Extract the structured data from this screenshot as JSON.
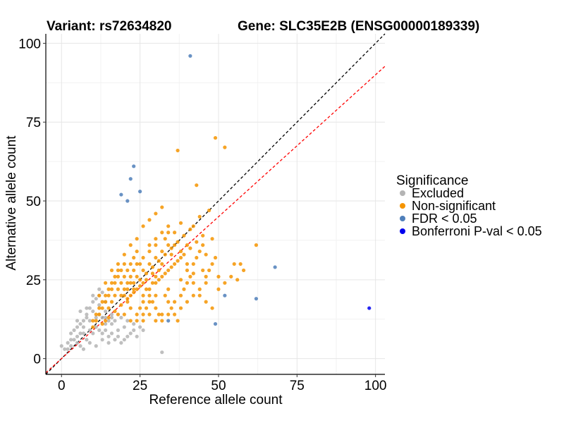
{
  "chart_data": {
    "type": "scatter",
    "title_left": "Variant: rs72634820",
    "title_right": "Gene: SLC35E2B (ENSG00000189339)",
    "xlabel": "Reference allele count",
    "ylabel": "Alternative allele count",
    "xlim": [
      -5,
      103
    ],
    "ylim": [
      -5,
      103
    ],
    "x_ticks": [
      0,
      25,
      50,
      75,
      100
    ],
    "y_ticks": [
      0,
      25,
      50,
      75,
      100
    ],
    "grid": true,
    "legend": {
      "title": "Significance",
      "position": "right",
      "entries": [
        {
          "label": "Excluded",
          "color": "#b4b4b4"
        },
        {
          "label": "Non-significant",
          "color": "#f59400"
        },
        {
          "label": "FDR < 0.05",
          "color": "#4f7fba"
        },
        {
          "label": "Bonferroni P-val < 0.05",
          "color": "#0000ee"
        }
      ]
    },
    "reference_lines": [
      {
        "description": "identity",
        "slope": 1,
        "intercept": 0,
        "color": "#000000",
        "dash": true
      },
      {
        "description": "fitted ratio",
        "slope": 0.9,
        "intercept": 0,
        "color": "#ff0000",
        "dash": true
      }
    ],
    "series": [
      {
        "name": "Excluded",
        "color": "#b4b4b4",
        "points": [
          [
            32,
            2
          ],
          [
            0,
            4
          ],
          [
            2,
            5
          ],
          [
            3,
            6
          ],
          [
            5,
            7
          ],
          [
            4,
            9
          ],
          [
            6,
            11
          ],
          [
            8,
            13
          ],
          [
            10,
            15
          ],
          [
            12,
            17
          ],
          [
            14,
            9
          ],
          [
            16,
            8
          ],
          [
            18,
            7
          ],
          [
            20,
            6
          ],
          [
            22,
            8
          ],
          [
            24,
            7
          ],
          [
            15,
            5
          ],
          [
            13,
            6
          ],
          [
            11,
            4
          ],
          [
            9,
            5
          ],
          [
            7,
            3
          ],
          [
            6,
            4
          ],
          [
            1,
            3
          ],
          [
            5,
            10
          ],
          [
            7,
            12
          ],
          [
            8,
            14
          ],
          [
            9,
            16
          ],
          [
            10,
            18
          ],
          [
            11,
            19
          ],
          [
            12,
            20
          ],
          [
            13,
            21
          ],
          [
            14,
            15
          ],
          [
            16,
            11
          ],
          [
            18,
            9
          ],
          [
            20,
            10
          ],
          [
            17,
            12
          ],
          [
            19,
            13
          ],
          [
            21,
            12
          ],
          [
            23,
            11
          ],
          [
            25,
            10
          ],
          [
            26,
            9
          ],
          [
            3,
            8
          ],
          [
            4,
            6
          ],
          [
            6,
            8
          ],
          [
            8,
            6
          ],
          [
            10,
            8
          ],
          [
            12,
            9
          ],
          [
            14,
            11
          ],
          [
            15,
            12
          ],
          [
            16,
            14
          ],
          [
            2,
            3
          ],
          [
            3,
            4
          ],
          [
            5,
            5
          ],
          [
            7,
            8
          ],
          [
            9,
            9
          ],
          [
            11,
            10
          ],
          [
            13,
            13
          ],
          [
            6,
            15
          ],
          [
            8,
            16
          ],
          [
            10,
            20
          ],
          [
            12,
            22
          ],
          [
            14,
            18
          ],
          [
            5,
            12
          ],
          [
            7,
            10
          ],
          [
            9,
            12
          ],
          [
            11,
            13
          ],
          [
            13,
            8
          ],
          [
            15,
            7
          ],
          [
            17,
            6
          ],
          [
            19,
            5
          ],
          [
            21,
            7
          ],
          [
            23,
            9
          ],
          [
            12,
            14
          ],
          [
            14,
            13
          ],
          [
            16,
            13
          ]
        ]
      },
      {
        "name": "Non-significant",
        "color": "#f59400",
        "points": [
          [
            37,
            66
          ],
          [
            49,
            70
          ],
          [
            52,
            67
          ],
          [
            43,
            55
          ],
          [
            47,
            47
          ],
          [
            44,
            45
          ],
          [
            42,
            42
          ],
          [
            38,
            43
          ],
          [
            36,
            40
          ],
          [
            33,
            38
          ],
          [
            30,
            36
          ],
          [
            28,
            36
          ],
          [
            35,
            33
          ],
          [
            40,
            30
          ],
          [
            45,
            28
          ],
          [
            50,
            26
          ],
          [
            55,
            30
          ],
          [
            57,
            30
          ],
          [
            62,
            36
          ],
          [
            48,
            38
          ],
          [
            46,
            33
          ],
          [
            42,
            27
          ],
          [
            38,
            25
          ],
          [
            34,
            22
          ],
          [
            30,
            20
          ],
          [
            26,
            18
          ],
          [
            22,
            16
          ],
          [
            18,
            14
          ],
          [
            14,
            12
          ],
          [
            10,
            10
          ],
          [
            12,
            20
          ],
          [
            14,
            24
          ],
          [
            16,
            28
          ],
          [
            18,
            30
          ],
          [
            20,
            33
          ],
          [
            22,
            36
          ],
          [
            24,
            38
          ],
          [
            26,
            42
          ],
          [
            28,
            44
          ],
          [
            30,
            46
          ],
          [
            32,
            48
          ],
          [
            34,
            40
          ],
          [
            36,
            36
          ],
          [
            38,
            32
          ],
          [
            40,
            28
          ],
          [
            42,
            24
          ],
          [
            44,
            20
          ],
          [
            46,
            18
          ],
          [
            48,
            16
          ],
          [
            50,
            22
          ],
          [
            52,
            24
          ],
          [
            54,
            26
          ],
          [
            56,
            25
          ],
          [
            58,
            28
          ],
          [
            25,
            25
          ],
          [
            27,
            27
          ],
          [
            29,
            29
          ],
          [
            31,
            31
          ],
          [
            33,
            33
          ],
          [
            35,
            35
          ],
          [
            37,
            37
          ],
          [
            39,
            39
          ],
          [
            41,
            41
          ],
          [
            20,
            20
          ],
          [
            21,
            22
          ],
          [
            23,
            24
          ],
          [
            24,
            26
          ],
          [
            26,
            28
          ],
          [
            28,
            30
          ],
          [
            30,
            32
          ],
          [
            32,
            34
          ],
          [
            34,
            36
          ],
          [
            15,
            16
          ],
          [
            16,
            18
          ],
          [
            17,
            20
          ],
          [
            18,
            22
          ],
          [
            19,
            24
          ],
          [
            20,
            26
          ],
          [
            21,
            28
          ],
          [
            22,
            30
          ],
          [
            23,
            32
          ],
          [
            24,
            34
          ],
          [
            25,
            30
          ],
          [
            26,
            24
          ],
          [
            27,
            22
          ],
          [
            28,
            20
          ],
          [
            29,
            18
          ],
          [
            30,
            16
          ],
          [
            31,
            14
          ],
          [
            32,
            12
          ],
          [
            33,
            20
          ],
          [
            34,
            18
          ],
          [
            35,
            16
          ],
          [
            36,
            14
          ],
          [
            37,
            12
          ],
          [
            38,
            20
          ],
          [
            39,
            22
          ],
          [
            40,
            24
          ],
          [
            41,
            26
          ],
          [
            42,
            30
          ],
          [
            43,
            32
          ],
          [
            44,
            34
          ],
          [
            45,
            36
          ],
          [
            46,
            26
          ],
          [
            47,
            28
          ],
          [
            48,
            30
          ],
          [
            49,
            32
          ],
          [
            11,
            12
          ],
          [
            12,
            14
          ],
          [
            13,
            16
          ],
          [
            14,
            18
          ],
          [
            15,
            20
          ],
          [
            16,
            22
          ],
          [
            17,
            24
          ],
          [
            18,
            26
          ],
          [
            19,
            28
          ],
          [
            20,
            30
          ],
          [
            21,
            18
          ],
          [
            22,
            20
          ],
          [
            23,
            22
          ],
          [
            24,
            14
          ],
          [
            25,
            16
          ],
          [
            26,
            14
          ],
          [
            27,
            16
          ],
          [
            28,
            18
          ],
          [
            29,
            24
          ],
          [
            30,
            26
          ],
          [
            31,
            28
          ],
          [
            32,
            30
          ],
          [
            13,
            11
          ],
          [
            15,
            13
          ],
          [
            17,
            15
          ],
          [
            19,
            17
          ],
          [
            21,
            19
          ],
          [
            23,
            21
          ],
          [
            25,
            23
          ],
          [
            27,
            25
          ],
          [
            29,
            27
          ],
          [
            31,
            25
          ],
          [
            33,
            27
          ],
          [
            35,
            29
          ],
          [
            37,
            31
          ],
          [
            39,
            33
          ],
          [
            41,
            35
          ],
          [
            43,
            37
          ],
          [
            45,
            39
          ],
          [
            10,
            12
          ],
          [
            11,
            14
          ],
          [
            12,
            16
          ],
          [
            13,
            18
          ],
          [
            14,
            20
          ],
          [
            15,
            22
          ],
          [
            16,
            24
          ],
          [
            17,
            26
          ],
          [
            18,
            28
          ],
          [
            22,
            24
          ],
          [
            24,
            22
          ],
          [
            26,
            20
          ],
          [
            28,
            22
          ],
          [
            30,
            24
          ],
          [
            32,
            26
          ],
          [
            34,
            28
          ],
          [
            36,
            30
          ],
          [
            38,
            34
          ],
          [
            40,
            36
          ],
          [
            24,
            30
          ],
          [
            26,
            32
          ],
          [
            28,
            34
          ],
          [
            30,
            38
          ],
          [
            32,
            40
          ],
          [
            34,
            42
          ],
          [
            19,
            20
          ],
          [
            20,
            22
          ],
          [
            21,
            24
          ],
          [
            22,
            26
          ],
          [
            23,
            28
          ],
          [
            20,
            14
          ],
          [
            22,
            12
          ],
          [
            24,
            12
          ],
          [
            26,
            12
          ],
          [
            28,
            14
          ],
          [
            30,
            12
          ],
          [
            32,
            14
          ],
          [
            34,
            14
          ],
          [
            36,
            18
          ],
          [
            38,
            16
          ],
          [
            40,
            18
          ],
          [
            42,
            20
          ],
          [
            44,
            22
          ],
          [
            46,
            24
          ]
        ]
      },
      {
        "name": "FDR < 0.05",
        "color": "#4f7fba",
        "points": [
          [
            41,
            96
          ],
          [
            23,
            61
          ],
          [
            22,
            57
          ],
          [
            25,
            53
          ],
          [
            19,
            52
          ],
          [
            21,
            50
          ],
          [
            68,
            29
          ],
          [
            52,
            20
          ],
          [
            62,
            19
          ],
          [
            34,
            12
          ],
          [
            49,
            11
          ]
        ]
      },
      {
        "name": "Bonferroni P-val < 0.05",
        "color": "#0000ee",
        "points": [
          [
            98,
            16
          ]
        ]
      }
    ]
  }
}
